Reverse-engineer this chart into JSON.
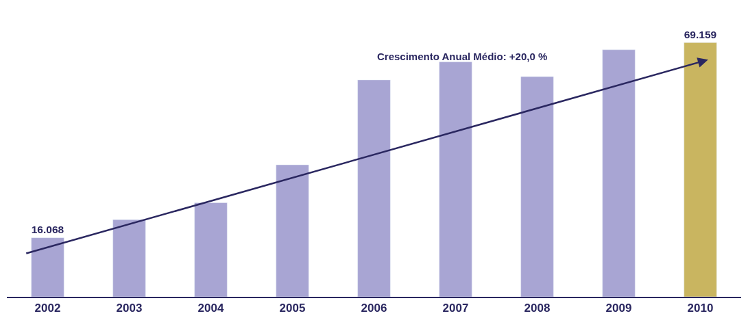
{
  "chart_data": {
    "type": "bar",
    "tick_labels": "x",
    "categories": [
      "2002",
      "2003",
      "2004",
      "2005",
      "2006",
      "2007",
      "2008",
      "2009",
      "2010"
    ],
    "values": [
      16068,
      21000,
      25600,
      35900,
      59000,
      63900,
      59900,
      67200,
      69159
    ],
    "colors": [
      "#a8a5d3",
      "#a8a5d3",
      "#a8a5d3",
      "#a8a5d3",
      "#a8a5d3",
      "#a8a5d3",
      "#a8a5d3",
      "#a8a5d3",
      "#c9b560"
    ],
    "value_labels": [
      "16.068",
      null,
      null,
      null,
      null,
      null,
      null,
      null,
      "69.159"
    ],
    "annotations": [
      "Crescimento Anual Médio: +20,0 %"
    ]
  }
}
